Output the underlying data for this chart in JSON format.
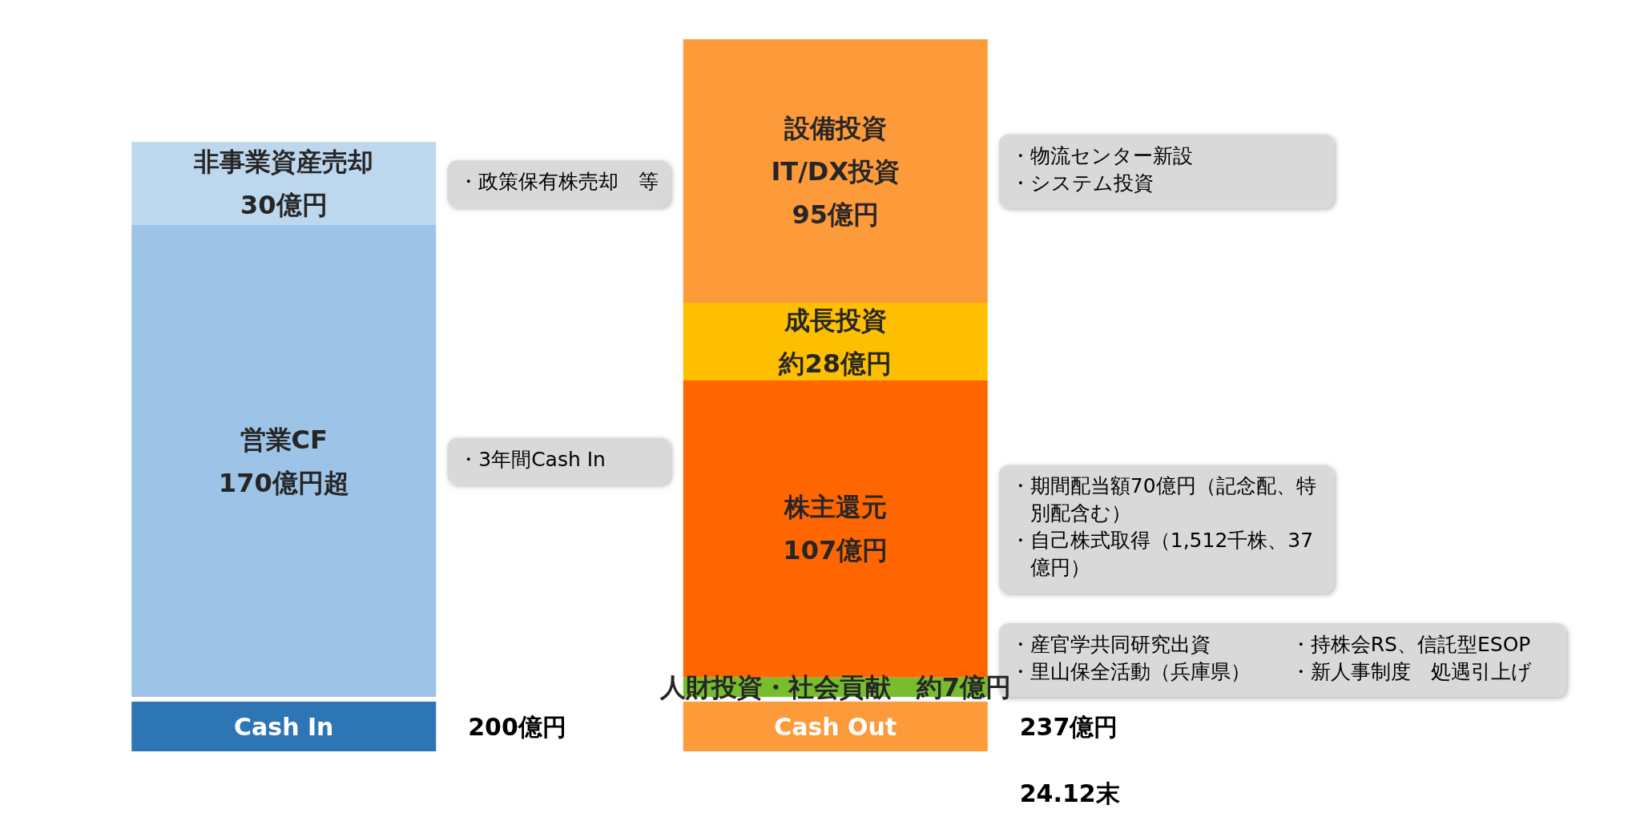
{
  "chart_data": {
    "type": "bar",
    "stacked": true,
    "legend": false,
    "categories": [
      "Cash In",
      "Cash Out"
    ],
    "series": [
      {
        "name": "営業CF",
        "color": "#9dc3e6",
        "values": [
          170,
          null
        ],
        "value_labels": [
          "170億円超",
          null
        ]
      },
      {
        "name": "非事業資産売却",
        "color": "#bdd7ee",
        "values": [
          30,
          null
        ],
        "value_labels": [
          "30億円",
          null
        ]
      },
      {
        "name": "人財投資・社会貢献",
        "color": "#77bd2d",
        "values": [
          null,
          7
        ],
        "value_labels": [
          null,
          "約7億円"
        ]
      },
      {
        "name": "株主還元",
        "color": "#ff6600",
        "values": [
          null,
          107
        ],
        "value_labels": [
          null,
          "107億円"
        ]
      },
      {
        "name": "成長投資",
        "color": "#fdbf00",
        "values": [
          null,
          28
        ],
        "value_labels": [
          null,
          "約28億円"
        ]
      },
      {
        "name": "設備投資\nIT/DX投資",
        "color": "#fd9a3a",
        "values": [
          null,
          95
        ],
        "value_labels": [
          null,
          "95億円"
        ]
      }
    ],
    "totals": [
      "200億円",
      "237億円"
    ],
    "annotations": [
      "・政策保有株売却　等",
      "・3年間Cash In",
      "・物流センター新設",
      "・システム投資",
      "・期間配当額70億円（記念配、特別配含む）",
      "・自己株式取得（1,512千株、37億円）",
      "・産官学共同研究出資",
      "・里山保全活動（兵庫県）",
      "・持株会RS、信託型ESOP",
      "・新人事制度　処遇引上げ",
      "24.12末"
    ]
  }
}
